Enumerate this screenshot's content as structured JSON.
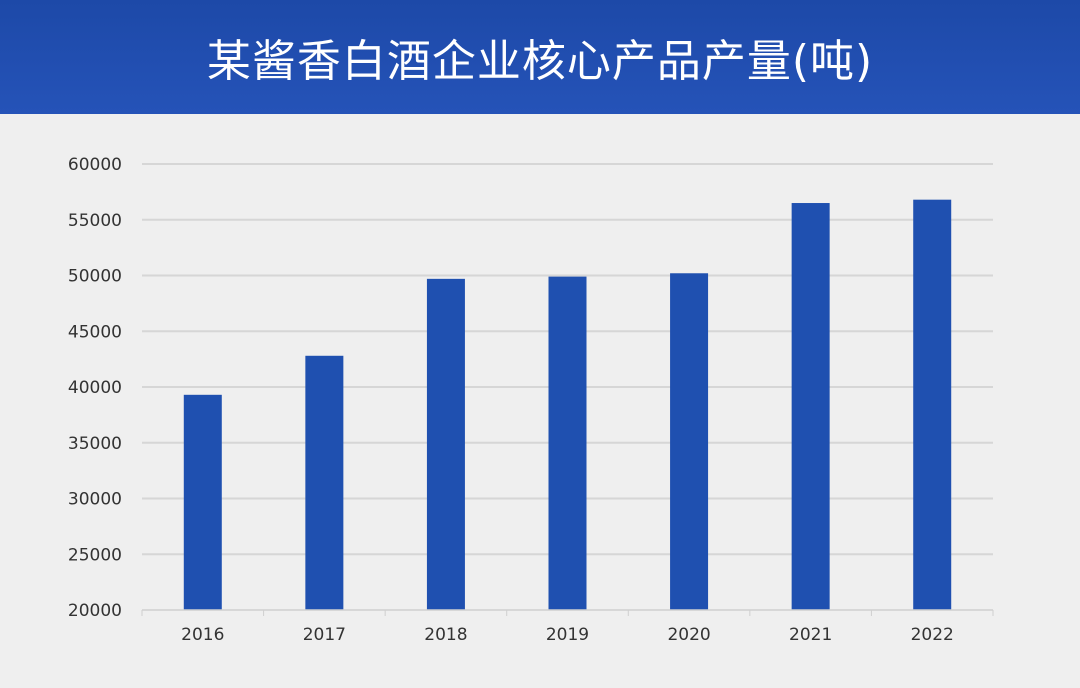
{
  "header": {
    "title": "某酱香白酒企业核心产品产量(吨)"
  },
  "colors": {
    "header_bg": "#1f4aa9",
    "bar": "#1f50b0",
    "grid": "#d6d6d6",
    "axis_text": "#333333",
    "background": "#efefef"
  },
  "chart_data": {
    "type": "bar",
    "title": "某酱香白酒企业核心产品产量(吨)",
    "categories": [
      "2016",
      "2017",
      "2018",
      "2019",
      "2020",
      "2021",
      "2022"
    ],
    "values": [
      39300,
      42800,
      49700,
      49900,
      50200,
      56500,
      56800
    ],
    "ylim": [
      20000,
      60000
    ],
    "yticks": [
      20000,
      25000,
      30000,
      35000,
      40000,
      45000,
      50000,
      55000,
      60000
    ],
    "grid": true,
    "legend": "none"
  }
}
